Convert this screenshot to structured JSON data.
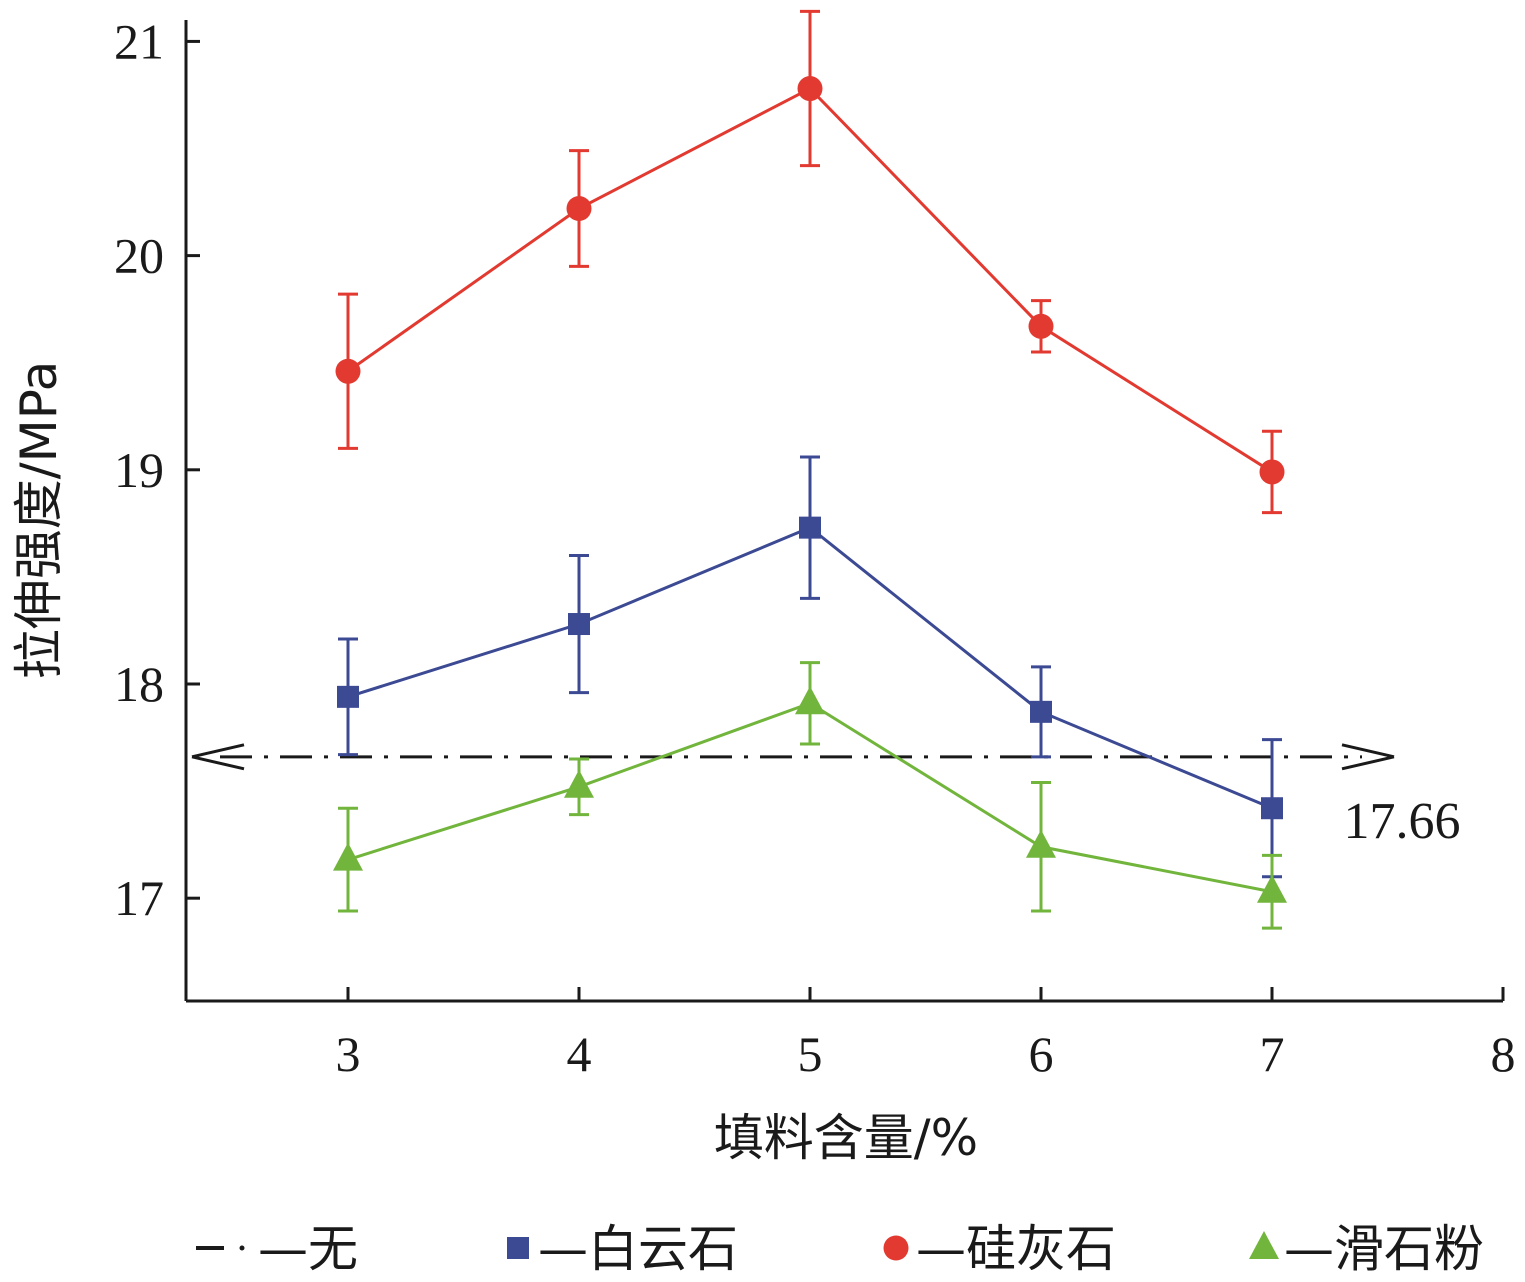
{
  "chart_data": {
    "type": "line",
    "x": [
      3,
      4,
      5,
      6,
      7
    ],
    "xlabel": "填料含量/%",
    "ylabel": "拉伸强度/MPa",
    "xlim": [
      2.4,
      8
    ],
    "ylim": [
      16.52,
      21.1
    ],
    "xticks": [
      3,
      4,
      5,
      6,
      7,
      8
    ],
    "yticks": [
      17,
      18,
      19,
      20,
      21
    ],
    "reference_line": {
      "name": "无",
      "value": 17.66,
      "label": "17.66",
      "color": "#1a1a1a"
    },
    "series": [
      {
        "name": "白云石",
        "marker": "square",
        "color": "#3c4a94",
        "values": [
          17.94,
          18.28,
          18.73,
          17.87,
          17.42
        ],
        "errors": [
          0.27,
          0.32,
          0.33,
          0.21,
          0.32
        ]
      },
      {
        "name": "硅灰石",
        "marker": "circle",
        "color": "#e23a30",
        "values": [
          19.46,
          20.22,
          20.78,
          19.67,
          18.99
        ],
        "errors": [
          0.36,
          0.27,
          0.36,
          0.12,
          0.19
        ]
      },
      {
        "name": "滑石粉",
        "marker": "triangle",
        "color": "#72b53c",
        "values": [
          17.18,
          17.52,
          17.91,
          17.24,
          17.03
        ],
        "errors": [
          0.24,
          0.13,
          0.19,
          0.3,
          0.17
        ]
      }
    ],
    "legend": [
      {
        "label": "—无",
        "marker": "dashdot"
      },
      {
        "label": "—白云石",
        "marker": "square"
      },
      {
        "label": "—硅灰石",
        "marker": "circle"
      },
      {
        "label": "—滑石粉",
        "marker": "triangle"
      }
    ],
    "grid": false,
    "legend_position": "bottom"
  }
}
